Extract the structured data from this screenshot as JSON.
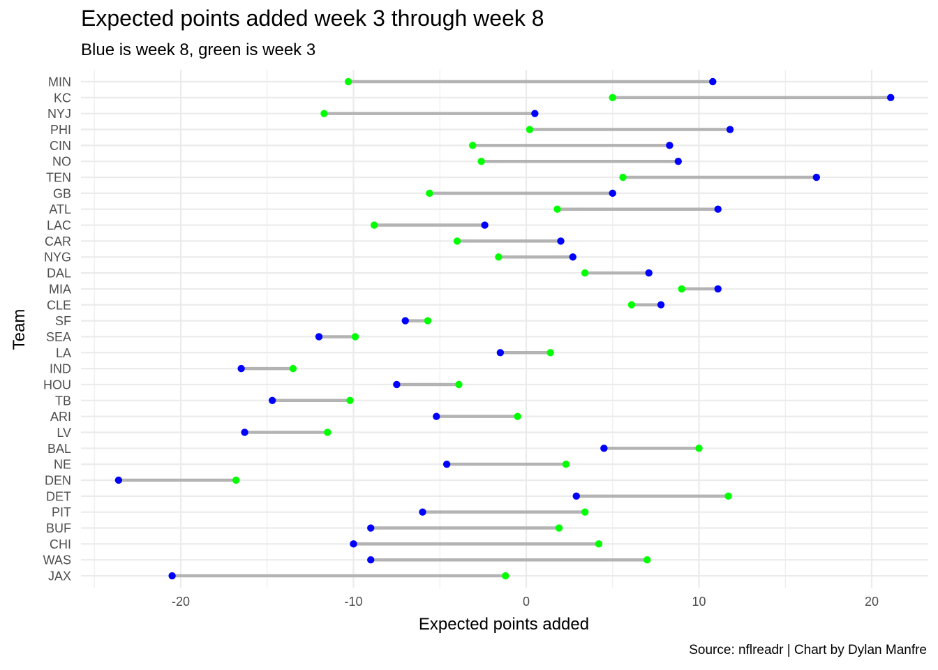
{
  "chart_data": {
    "type": "dumbbell",
    "title": "Expected points added week 3 through week 8",
    "subtitle": "Blue is week 8, green is week 3",
    "caption": "Source: nflreadr | Chart by Dylan Manfre",
    "xlabel": "Expected points added",
    "ylabel": "Team",
    "xlim": [
      -25.5,
      23.5
    ],
    "xticks": [
      -20,
      -10,
      0,
      10,
      20
    ],
    "xtick_labels": [
      "-20",
      "-10",
      "0",
      "10",
      "20"
    ],
    "grid": true,
    "colors": {
      "week8": "#0000ff",
      "week3": "#00ff00",
      "segment": "#b3b3b3",
      "grid": "#ebebeb"
    },
    "teams": [
      {
        "team": "MIN",
        "week3": -10.3,
        "week8": 10.8
      },
      {
        "team": "KC",
        "week3": 5.0,
        "week8": 21.1
      },
      {
        "team": "NYJ",
        "week3": -11.7,
        "week8": 0.5
      },
      {
        "team": "PHI",
        "week3": 0.2,
        "week8": 11.8
      },
      {
        "team": "CIN",
        "week3": -3.1,
        "week8": 8.3
      },
      {
        "team": "NO",
        "week3": -2.6,
        "week8": 8.8
      },
      {
        "team": "TEN",
        "week3": 5.6,
        "week8": 16.8
      },
      {
        "team": "GB",
        "week3": -5.6,
        "week8": 5.0
      },
      {
        "team": "ATL",
        "week3": 1.8,
        "week8": 11.1
      },
      {
        "team": "LAC",
        "week3": -8.8,
        "week8": -2.4
      },
      {
        "team": "CAR",
        "week3": -4.0,
        "week8": 2.0
      },
      {
        "team": "NYG",
        "week3": -1.6,
        "week8": 2.7
      },
      {
        "team": "DAL",
        "week3": 3.4,
        "week8": 7.1
      },
      {
        "team": "MIA",
        "week3": 9.0,
        "week8": 11.1
      },
      {
        "team": "CLE",
        "week3": 6.1,
        "week8": 7.8
      },
      {
        "team": "SF",
        "week3": -5.7,
        "week8": -7.0
      },
      {
        "team": "SEA",
        "week3": -9.9,
        "week8": -12.0
      },
      {
        "team": "LA",
        "week3": 1.4,
        "week8": -1.5
      },
      {
        "team": "IND",
        "week3": -13.5,
        "week8": -16.5
      },
      {
        "team": "HOU",
        "week3": -3.9,
        "week8": -7.5
      },
      {
        "team": "TB",
        "week3": -10.2,
        "week8": -14.7
      },
      {
        "team": "ARI",
        "week3": -0.5,
        "week8": -5.2
      },
      {
        "team": "LV",
        "week3": -11.5,
        "week8": -16.3
      },
      {
        "team": "BAL",
        "week3": 10.0,
        "week8": 4.5
      },
      {
        "team": "NE",
        "week3": 2.3,
        "week8": -4.6
      },
      {
        "team": "DEN",
        "week3": -16.8,
        "week8": -23.6
      },
      {
        "team": "DET",
        "week3": 11.7,
        "week8": 2.9
      },
      {
        "team": "PIT",
        "week3": 3.4,
        "week8": -6.0
      },
      {
        "team": "BUF",
        "week3": 1.9,
        "week8": -9.0
      },
      {
        "team": "CHI",
        "week3": 4.2,
        "week8": -10.0
      },
      {
        "team": "WAS",
        "week3": 7.0,
        "week8": -9.0
      },
      {
        "team": "JAX",
        "week3": -1.2,
        "week8": -20.5
      }
    ]
  }
}
